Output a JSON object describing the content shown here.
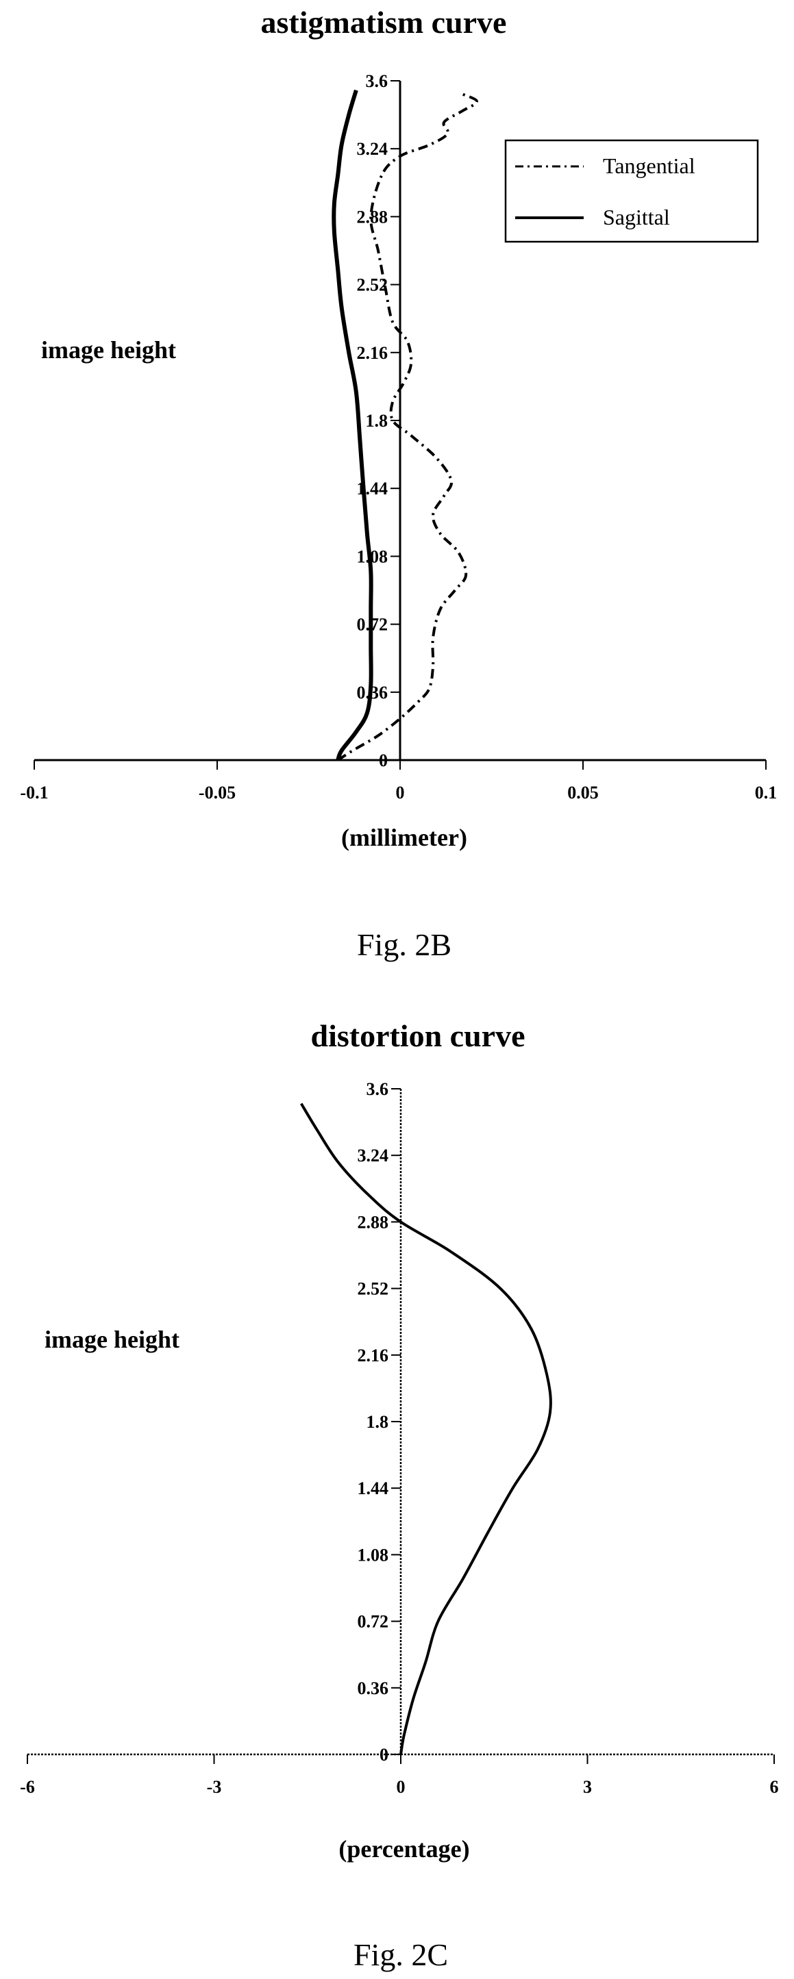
{
  "chart_data": [
    {
      "type": "line",
      "title": "astigmatism curve",
      "figure_label": "Fig. 2B",
      "xlabel": "(millimeter)",
      "ylabel": "image height",
      "xlim": [
        -0.1,
        0.1
      ],
      "ylim": [
        0,
        3.6
      ],
      "x_ticks": [
        "-0.1",
        "-0.05",
        "0",
        "0.05",
        "0.1"
      ],
      "y_ticks": [
        "0",
        "0.36",
        "0.72",
        "1.08",
        "1.44",
        "1.8",
        "2.16",
        "2.52",
        "2.88",
        "3.24",
        "3.6"
      ],
      "legend": {
        "position": "top-right"
      },
      "series": [
        {
          "name": "Tangential",
          "style": "dash-dot",
          "points": [
            [
              -0.017,
              0.0
            ],
            [
              -0.013,
              0.05
            ],
            [
              -0.006,
              0.13
            ],
            [
              0.0,
              0.22
            ],
            [
              0.005,
              0.31
            ],
            [
              0.008,
              0.38
            ],
            [
              0.009,
              0.5
            ],
            [
              0.009,
              0.65
            ],
            [
              0.011,
              0.8
            ],
            [
              0.015,
              0.9
            ],
            [
              0.018,
              0.98
            ],
            [
              0.016,
              1.1
            ],
            [
              0.011,
              1.2
            ],
            [
              0.009,
              1.3
            ],
            [
              0.012,
              1.4
            ],
            [
              0.014,
              1.48
            ],
            [
              0.01,
              1.6
            ],
            [
              0.003,
              1.72
            ],
            [
              -0.002,
              1.8
            ],
            [
              -0.002,
              1.9
            ],
            [
              0.001,
              2.0
            ],
            [
              0.003,
              2.1
            ],
            [
              0.002,
              2.22
            ],
            [
              -0.002,
              2.32
            ],
            [
              -0.004,
              2.5
            ],
            [
              -0.006,
              2.7
            ],
            [
              -0.008,
              2.88
            ],
            [
              -0.005,
              3.1
            ],
            [
              0.0,
              3.2
            ],
            [
              0.008,
              3.26
            ],
            [
              0.013,
              3.32
            ],
            [
              0.012,
              3.38
            ],
            [
              0.017,
              3.44
            ],
            [
              0.021,
              3.49
            ],
            [
              0.017,
              3.53
            ]
          ]
        },
        {
          "name": "Sagittal",
          "style": "solid",
          "points": [
            [
              -0.017,
              0.0
            ],
            [
              -0.016,
              0.05
            ],
            [
              -0.012,
              0.15
            ],
            [
              -0.009,
              0.25
            ],
            [
              -0.008,
              0.4
            ],
            [
              -0.008,
              0.6
            ],
            [
              -0.008,
              0.8
            ],
            [
              -0.008,
              1.0
            ],
            [
              -0.009,
              1.2
            ],
            [
              -0.01,
              1.44
            ],
            [
              -0.011,
              1.7
            ],
            [
              -0.012,
              1.95
            ],
            [
              -0.014,
              2.16
            ],
            [
              -0.016,
              2.4
            ],
            [
              -0.017,
              2.6
            ],
            [
              -0.018,
              2.8
            ],
            [
              -0.018,
              2.95
            ],
            [
              -0.017,
              3.1
            ],
            [
              -0.016,
              3.26
            ],
            [
              -0.014,
              3.42
            ],
            [
              -0.012,
              3.55
            ]
          ]
        }
      ]
    },
    {
      "type": "line",
      "title": "distortion curve",
      "figure_label": "Fig. 2C",
      "xlabel": "(percentage)",
      "ylabel": "image height",
      "xlim": [
        -6,
        6
      ],
      "ylim": [
        0,
        3.6
      ],
      "x_ticks": [
        "-6",
        "-3",
        "0",
        "3",
        "6"
      ],
      "y_ticks": [
        "0",
        "0.36",
        "0.72",
        "1.08",
        "1.44",
        "1.8",
        "2.16",
        "2.52",
        "2.88",
        "3.24",
        "3.6"
      ],
      "series": [
        {
          "style": "solid",
          "points": [
            [
              0.0,
              0.0
            ],
            [
              0.05,
              0.1
            ],
            [
              0.2,
              0.3
            ],
            [
              0.4,
              0.5
            ],
            [
              0.6,
              0.72
            ],
            [
              1.0,
              0.95
            ],
            [
              1.4,
              1.2
            ],
            [
              1.8,
              1.44
            ],
            [
              2.2,
              1.65
            ],
            [
              2.4,
              1.85
            ],
            [
              2.35,
              2.05
            ],
            [
              2.1,
              2.3
            ],
            [
              1.6,
              2.52
            ],
            [
              0.8,
              2.72
            ],
            [
              0.0,
              2.88
            ],
            [
              -0.5,
              3.02
            ],
            [
              -1.0,
              3.2
            ],
            [
              -1.35,
              3.38
            ],
            [
              -1.6,
              3.52
            ]
          ]
        }
      ]
    }
  ]
}
